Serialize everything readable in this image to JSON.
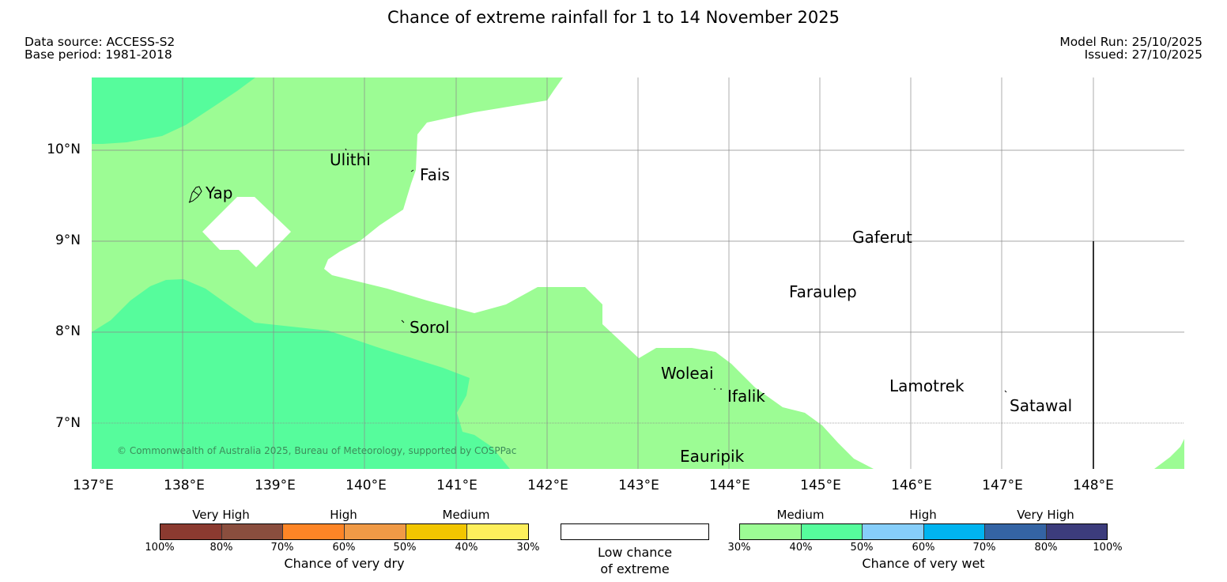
{
  "header": {
    "title": "Chance of extreme rainfall for 1 to 14 November 2025",
    "data_source": "Data source: ACCESS-S2",
    "base_period": "Base period: 1981-2018",
    "model_run": "Model Run: 25/10/2025",
    "issued": "Issued: 27/10/2025"
  },
  "map": {
    "lat_labels": [
      "10°N",
      "9°N",
      "8°N",
      "7°N"
    ],
    "lon_labels": [
      "137°E",
      "138°E",
      "139°E",
      "140°E",
      "141°E",
      "142°E",
      "143°E",
      "144°E",
      "145°E",
      "146°E",
      "147°E",
      "148°E"
    ],
    "places": {
      "ulithi": "Ulithi",
      "fais": "Fais",
      "yap": "Yap",
      "gaferut": "Gaferut",
      "faraulep": "Faraulep",
      "sorol": "Sorol",
      "woleai": "Woleai",
      "ifalik": "Ifalik",
      "lamotrek": "Lamotrek",
      "satawal": "Satawal",
      "eauripik": "Eauripik"
    },
    "copyright": "© Commonwealth of Australia 2025, Bureau of Meteorology, supported by COSPPac",
    "colors": {
      "wet_medium_30_40": "#9cfc94",
      "wet_medium_40_50": "#56fc9c",
      "ocean_low": "#ffffff"
    }
  },
  "legend": {
    "dry": {
      "bands": [
        "Very High",
        "High",
        "Medium"
      ],
      "ticks": [
        "100%",
        "80%",
        "70%",
        "60%",
        "50%",
        "40%",
        "30%"
      ],
      "title": "Chance of very dry",
      "colors": [
        "#8b3a30",
        "#8a4e3e",
        "#fd8526",
        "#f09a46",
        "#f2c600",
        "#fdef5c",
        "#fdfa96"
      ]
    },
    "low": {
      "line1": "Low chance",
      "line2": "of extreme"
    },
    "wet": {
      "bands": [
        "Medium",
        "High",
        "Very High"
      ],
      "ticks": [
        "30%",
        "40%",
        "50%",
        "60%",
        "70%",
        "80%",
        "100%"
      ],
      "title": "Chance of very wet",
      "colors": [
        "#9cfc94",
        "#56fc9c",
        "#86cefa",
        "#00b4f0",
        "#3464a4",
        "#3c3c7c"
      ]
    }
  }
}
